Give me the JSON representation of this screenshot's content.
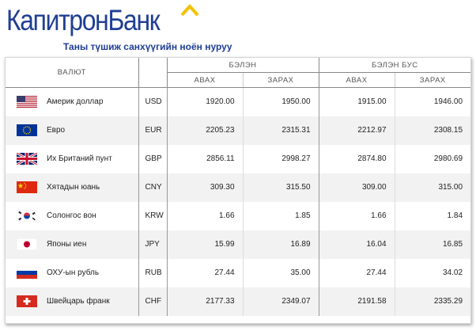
{
  "brand": {
    "name_part1": "Капитрон",
    "name_part2": "Банк",
    "tagline": "Таны түшиж санхүүгийн ноён нуруу",
    "color": "#1f3e93",
    "accent": "#f2c200"
  },
  "table": {
    "col_currency": "ВАЛЮТ",
    "group_cash": "БЭЛЭН",
    "group_noncash": "БЭЛЭН БУС",
    "buy": "АВАХ",
    "sell": "ЗАРАХ",
    "rows": [
      {
        "flag": "us-flag-icon",
        "name": "Америк доллар",
        "code": "USD",
        "cash_buy": "1920.00",
        "cash_sell": "1950.00",
        "noncash_buy": "1915.00",
        "noncash_sell": "1946.00"
      },
      {
        "flag": "eu-flag-icon",
        "name": "Евро",
        "code": "EUR",
        "cash_buy": "2205.23",
        "cash_sell": "2315.31",
        "noncash_buy": "2212.97",
        "noncash_sell": "2308.15"
      },
      {
        "flag": "gb-flag-icon",
        "name": "Их Британий пунт",
        "code": "GBP",
        "cash_buy": "2856.11",
        "cash_sell": "2998.27",
        "noncash_buy": "2874.80",
        "noncash_sell": "2980.69"
      },
      {
        "flag": "cn-flag-icon",
        "name": "Хятадын юань",
        "code": "CNY",
        "cash_buy": "309.30",
        "cash_sell": "315.50",
        "noncash_buy": "309.00",
        "noncash_sell": "315.00"
      },
      {
        "flag": "kr-flag-icon",
        "name": "Солонгос вон",
        "code": "KRW",
        "cash_buy": "1.66",
        "cash_sell": "1.85",
        "noncash_buy": "1.66",
        "noncash_sell": "1.84"
      },
      {
        "flag": "jp-flag-icon",
        "name": "Японы иен",
        "code": "JPY",
        "cash_buy": "15.99",
        "cash_sell": "16.89",
        "noncash_buy": "16.04",
        "noncash_sell": "16.85"
      },
      {
        "flag": "ru-flag-icon",
        "name": "ОХУ-ын рубль",
        "code": "RUB",
        "cash_buy": "27.44",
        "cash_sell": "35.00",
        "noncash_buy": "27.44",
        "noncash_sell": "34.02"
      },
      {
        "flag": "ch-flag-icon",
        "name": "Швейцарь франк",
        "code": "CHF",
        "cash_buy": "2177.33",
        "cash_sell": "2349.07",
        "noncash_buy": "2191.58",
        "noncash_sell": "2335.29"
      }
    ]
  }
}
